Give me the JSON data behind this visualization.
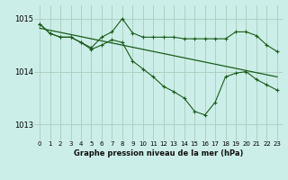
{
  "bg_color": "#cceee8",
  "grid_color": "#aaccbb",
  "line_color": "#1a5c1a",
  "title": "Graphe pression niveau de la mer (hPa)",
  "xlim": [
    -0.5,
    23.5
  ],
  "ylim": [
    1012.7,
    1015.25
  ],
  "yticks": [
    1013,
    1014,
    1015
  ],
  "xticks": [
    0,
    1,
    2,
    3,
    4,
    5,
    6,
    7,
    8,
    9,
    10,
    11,
    12,
    13,
    14,
    15,
    16,
    17,
    18,
    19,
    20,
    21,
    22,
    23
  ],
  "line1_x": [
    0,
    1,
    2,
    3,
    4,
    5,
    6,
    7,
    8,
    9,
    10,
    11,
    12,
    13,
    14,
    15,
    16,
    17,
    18,
    19,
    20,
    21,
    22,
    23
  ],
  "line1_y": [
    1014.9,
    1014.72,
    1014.65,
    1014.65,
    1014.55,
    1014.45,
    1014.65,
    1014.75,
    1015.0,
    1014.73,
    1014.65,
    1014.65,
    1014.65,
    1014.65,
    1014.62,
    1014.62,
    1014.62,
    1014.62,
    1014.62,
    1014.75,
    1014.75,
    1014.68,
    1014.5,
    1014.38
  ],
  "line2_x": [
    0,
    1,
    2,
    3,
    4,
    5,
    6,
    7,
    8,
    9,
    10,
    11,
    12,
    13,
    14,
    15,
    16,
    17,
    18,
    19,
    20,
    21,
    22,
    23
  ],
  "line2_y": [
    1014.9,
    1014.72,
    1014.65,
    1014.65,
    1014.55,
    1014.42,
    1014.5,
    1014.6,
    1014.55,
    1014.2,
    1014.05,
    1013.9,
    1013.72,
    1013.62,
    1013.5,
    1013.25,
    1013.18,
    1013.42,
    1013.9,
    1013.97,
    1014.0,
    1013.85,
    1013.75,
    1013.65
  ],
  "line3_x": [
    0,
    1,
    2,
    3,
    4,
    5,
    6,
    7,
    8,
    9,
    10,
    11,
    12,
    13,
    14,
    15,
    16,
    17,
    18,
    19,
    20,
    21,
    22,
    23
  ],
  "line3_y": [
    1014.82,
    1014.78,
    1014.74,
    1014.7,
    1014.66,
    1014.62,
    1014.58,
    1014.54,
    1014.5,
    1014.46,
    1014.42,
    1014.38,
    1014.34,
    1014.3,
    1014.26,
    1014.22,
    1014.18,
    1014.14,
    1014.1,
    1014.06,
    1014.02,
    1013.98,
    1013.94,
    1013.9
  ]
}
